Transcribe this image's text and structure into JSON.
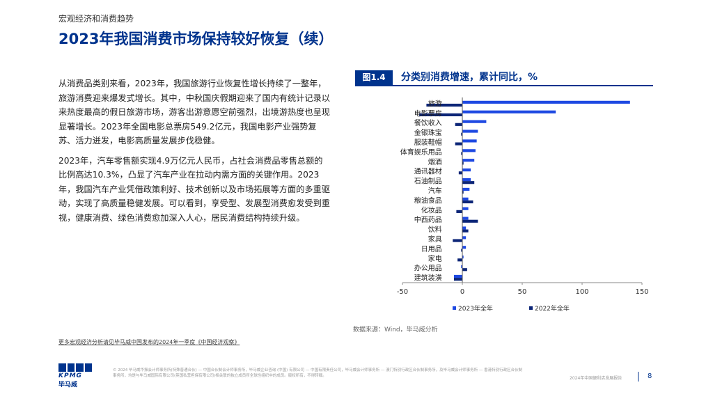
{
  "header": {
    "section": "宏观经济和消费趋势",
    "title": "2023年我国消费市场保持较好恢复（续）"
  },
  "body": {
    "paragraphs": [
      "从消费品类别来看，2023年，我国旅游行业恢复性增长持续了一整年，旅游消费迎来爆发式增长。其中，中秋国庆假期迎来了国内有统计记录以来热度最高的假日旅游市场，游客出游意愿空前强烈，出境游热度也呈现显著增长。2023年全国电影总票房549.2亿元，我国电影产业强势复苏、活力迸发，电影高质量发展步伐稳健。",
      "2023年，汽车零售额实现4.9万亿元人民币，占社会消费品零售总额的比例高达10.3%，凸显了汽车产业在拉动内需方面的关键作用。2023年，我国汽车产业凭借政策利好、技术创新以及市场拓展等方面的多重驱动，实现了高质量稳健发展。可以看到，享受型、发展型消费愈发受到重视，健康消费、绿色消费愈加深入人心，居民消费结构持续升级。"
    ]
  },
  "figure": {
    "number": "图1.4",
    "title": "分类别消费增速，累计同比，%",
    "source": "数据来源：Wind，毕马威分析"
  },
  "chart_data": {
    "type": "bar",
    "orientation": "horizontal",
    "categories": [
      "旅游",
      "电影票房",
      "餐饮收入",
      "金银珠宝",
      "服装鞋帽",
      "体育娱乐用品",
      "烟酒",
      "通讯器材",
      "石油制品",
      "汽车",
      "粮油食品",
      "化妆品",
      "中西药品",
      "饮料",
      "家具",
      "日用品",
      "家电",
      "办公用品",
      "建筑装潢"
    ],
    "series": [
      {
        "name": "2023年全年",
        "color": "#1e49e2",
        "values": [
          140,
          78,
          20,
          13,
          12,
          11,
          10,
          7,
          7,
          6,
          5,
          5,
          5,
          3,
          3,
          3,
          1,
          -1,
          -7
        ]
      },
      {
        "name": "2022年全年",
        "color": "#0c2577",
        "values": [
          -30,
          -36,
          -6,
          -1,
          -6,
          -1,
          1,
          -3,
          10,
          1,
          9,
          -5,
          13,
          5,
          -8,
          -1,
          -4,
          4,
          -7
        ]
      }
    ],
    "xlim": [
      -50,
      150
    ],
    "xticks": [
      -50,
      0,
      50,
      100,
      150
    ],
    "grid": false,
    "legend": "bottom"
  },
  "footer": {
    "more_link": "更多宏观经济分析请见毕马威中国发布的2024年一季度《中国经济观察》",
    "logo_word": "KPMG",
    "logo_cn": "毕马威",
    "legal": "© 2024 毕马威华振会计师事务所(特殊普通合伙) — 中国合伙制会计师事务所，毕马威企业咨询 (中国) 有限公司 — 中国有限责任公司，毕马威会计师事务所 — 澳门特别行政区合伙制事务所，及毕马威会计师事务所 — 香港特别行政区合伙制事务所，均是与毕马威国际有限公司(英国私营担保有限公司)相关联的独立成员所全球性组织中的成员。版权所有，不得转载。",
    "report": "2024年中国便利店发展报告",
    "page": "8"
  }
}
